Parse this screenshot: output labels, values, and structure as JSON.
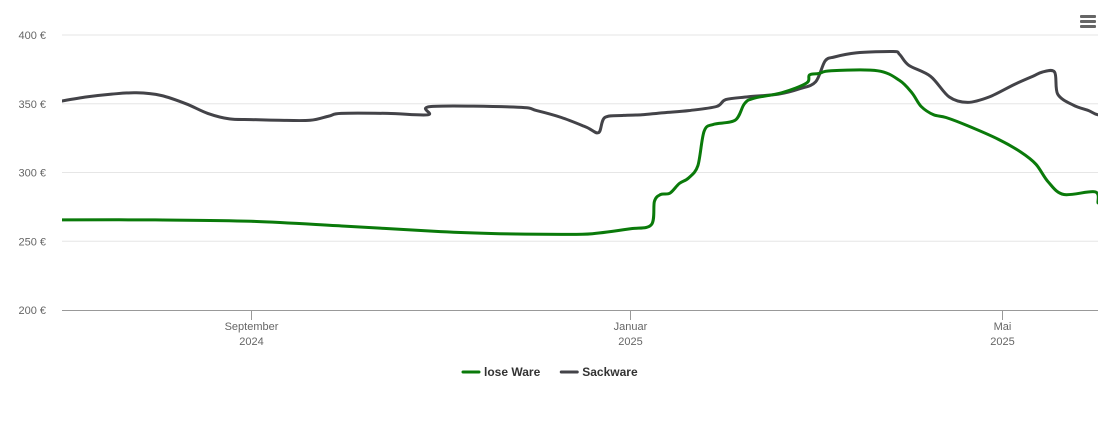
{
  "chart_data": {
    "type": "line",
    "title": "",
    "xlabel": "",
    "ylabel": "",
    "x_range": [
      "2024-07-02",
      "2025-06-01"
    ],
    "ylim": [
      200,
      400
    ],
    "y_ticks": [
      {
        "value": 200,
        "label": "200 €"
      },
      {
        "value": 250,
        "label": "250 €"
      },
      {
        "value": 300,
        "label": "300 €"
      },
      {
        "value": 350,
        "label": "350 €"
      },
      {
        "value": 400,
        "label": "400 €"
      }
    ],
    "x_ticks": [
      {
        "date": "2024-09-01",
        "line1": "September",
        "line2": "2024"
      },
      {
        "date": "2025-01-01",
        "line1": "Januar",
        "line2": "2025"
      },
      {
        "date": "2025-05-01",
        "line1": "Mai",
        "line2": "2025"
      }
    ],
    "grid": true,
    "legend_position": "bottom-center",
    "series": [
      {
        "name": "lose Ware",
        "color": "#0a7a0a",
        "points": [
          [
            "2024-07-02",
            265.5
          ],
          [
            "2024-08-01",
            265.5
          ],
          [
            "2024-09-01",
            264.5
          ],
          [
            "2024-10-01",
            261
          ],
          [
            "2024-11-01",
            257
          ],
          [
            "2024-11-20",
            255.5
          ],
          [
            "2024-12-10",
            255
          ],
          [
            "2024-12-20",
            255.5
          ],
          [
            "2025-01-01",
            259
          ],
          [
            "2025-01-08",
            262
          ],
          [
            "2025-01-09",
            279
          ],
          [
            "2025-01-11",
            284
          ],
          [
            "2025-01-14",
            285
          ],
          [
            "2025-01-17",
            292
          ],
          [
            "2025-01-20",
            296
          ],
          [
            "2025-01-23",
            305
          ],
          [
            "2025-01-25",
            330
          ],
          [
            "2025-01-28",
            335
          ],
          [
            "2025-02-04",
            338
          ],
          [
            "2025-02-07",
            350
          ],
          [
            "2025-02-10",
            354
          ],
          [
            "2025-02-19",
            358
          ],
          [
            "2025-02-27",
            365
          ],
          [
            "2025-02-28",
            371
          ],
          [
            "2025-03-03",
            372
          ],
          [
            "2025-03-07",
            374
          ],
          [
            "2025-03-22",
            374
          ],
          [
            "2025-03-29",
            367
          ],
          [
            "2025-04-02",
            358
          ],
          [
            "2025-04-05",
            348
          ],
          [
            "2025-04-09",
            342
          ],
          [
            "2025-04-13",
            340
          ],
          [
            "2025-04-20",
            334
          ],
          [
            "2025-04-30",
            324
          ],
          [
            "2025-05-07",
            315
          ],
          [
            "2025-05-12",
            306
          ],
          [
            "2025-05-16",
            293
          ],
          [
            "2025-05-21",
            284
          ],
          [
            "2025-05-31",
            286
          ],
          [
            "2025-06-01",
            278
          ]
        ]
      },
      {
        "name": "Sackware",
        "color": "#434348",
        "points": [
          [
            "2024-07-02",
            352
          ],
          [
            "2024-07-10",
            355
          ],
          [
            "2024-07-18",
            357
          ],
          [
            "2024-07-26",
            358
          ],
          [
            "2024-08-03",
            356
          ],
          [
            "2024-08-11",
            350
          ],
          [
            "2024-08-18",
            343
          ],
          [
            "2024-08-25",
            339
          ],
          [
            "2024-09-01",
            338.5
          ],
          [
            "2024-09-10",
            338
          ],
          [
            "2024-09-20",
            338
          ],
          [
            "2024-09-26",
            341
          ],
          [
            "2024-09-30",
            343
          ],
          [
            "2024-10-15",
            343
          ],
          [
            "2024-10-28",
            342
          ],
          [
            "2024-10-29",
            348
          ],
          [
            "2024-11-26",
            347.5
          ],
          [
            "2024-12-02",
            345
          ],
          [
            "2024-12-10",
            340
          ],
          [
            "2024-12-18",
            333
          ],
          [
            "2024-12-22",
            329
          ],
          [
            "2024-12-24",
            340
          ],
          [
            "2024-12-30",
            341.5
          ],
          [
            "2025-01-05",
            342
          ],
          [
            "2025-01-12",
            343.5
          ],
          [
            "2025-01-20",
            345
          ],
          [
            "2025-01-29",
            348
          ],
          [
            "2025-02-01",
            353
          ],
          [
            "2025-02-08",
            355
          ],
          [
            "2025-02-18",
            357
          ],
          [
            "2025-02-25",
            361
          ],
          [
            "2025-03-02",
            366
          ],
          [
            "2025-03-05",
            381
          ],
          [
            "2025-03-08",
            384
          ],
          [
            "2025-03-15",
            387
          ],
          [
            "2025-03-27",
            388
          ],
          [
            "2025-03-29",
            386
          ],
          [
            "2025-04-01",
            378
          ],
          [
            "2025-04-08",
            370
          ],
          [
            "2025-04-14",
            355
          ],
          [
            "2025-04-20",
            351
          ],
          [
            "2025-04-27",
            355
          ],
          [
            "2025-05-05",
            364
          ],
          [
            "2025-05-11",
            370
          ],
          [
            "2025-05-14",
            373
          ],
          [
            "2025-05-18",
            373
          ],
          [
            "2025-05-19",
            357
          ],
          [
            "2025-05-24",
            349
          ],
          [
            "2025-05-29",
            345
          ],
          [
            "2025-06-01",
            342
          ],
          [
            "2025-06-07",
            341.5
          ],
          [
            "2025-06-21",
            340
          ]
        ]
      }
    ]
  },
  "menu": {
    "icon": "hamburger-menu-icon"
  }
}
